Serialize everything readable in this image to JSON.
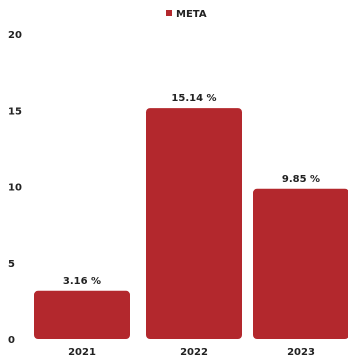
{
  "chart_data": {
    "type": "bar",
    "categories": [
      "2021",
      "2022",
      "2023"
    ],
    "series": [
      {
        "name": "META",
        "values": [
          3.16,
          15.14,
          9.85
        ],
        "color": "#b3282d"
      }
    ],
    "data_labels": [
      "3.16 %",
      "15.14 %",
      "9.85 %"
    ],
    "yticks": [
      0,
      5,
      10,
      15,
      20
    ],
    "ylim": [
      0,
      20
    ],
    "grid": false,
    "legend": "top-center"
  }
}
